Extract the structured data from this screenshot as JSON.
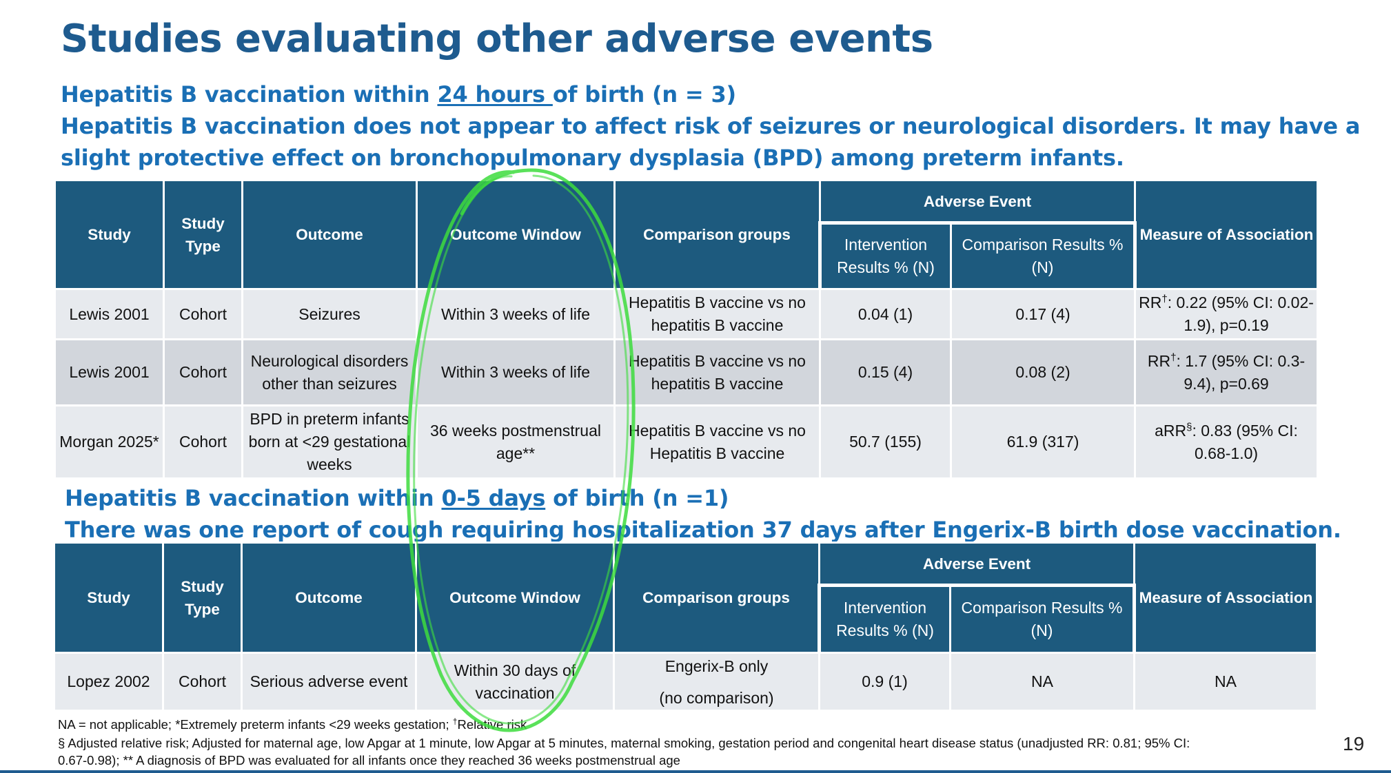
{
  "slide": {
    "title": "Studies evaluating other adverse events",
    "page_number": "19"
  },
  "section1": {
    "heading_prefix": "Hepatitis B vaccination within ",
    "heading_underlined": "24 hours ",
    "heading_suffix": "of birth (n = 3)",
    "summary_line1": "Hepatitis B vaccination does not appear to affect risk of seizures or neurological disorders. It may have a",
    "summary_line2": "slight protective effect on bronchopulmonary dysplasia (BPD) among preterm infants."
  },
  "section2": {
    "heading_prefix": "Hepatitis B vaccination within ",
    "heading_underlined": "0-5 days",
    "heading_suffix": " of birth (n =1)",
    "summary": "There was one report of cough requiring hospitalization 37 days after Engerix-B birth dose vaccination."
  },
  "columns": {
    "study": "Study",
    "study_type": "Study Type",
    "outcome": "Outcome",
    "outcome_window": "Outcome Window",
    "comparison_groups": "Comparison groups",
    "adverse_event": "Adverse Event",
    "intervention_results": "Intervention Results % (N)",
    "comparison_results": "Comparison Results % (N)",
    "measure": "Measure of Association"
  },
  "table1": {
    "rows": [
      {
        "study": "Lewis 2001",
        "type": "Cohort",
        "outcome": "Seizures",
        "window": "Within 3 weeks of life",
        "comparison": "Hepatitis B vaccine vs no hepatitis B vaccine",
        "intervention": "0.04 (1)",
        "comparison_result": "0.17 (4)",
        "measure_prefix": "RR",
        "measure_mark": "†",
        "measure_rest": ": 0.22 (95% CI: 0.02-1.9), p=0.19"
      },
      {
        "study": "Lewis 2001",
        "type": "Cohort",
        "outcome": "Neurological disorders other than seizures",
        "window": "Within 3 weeks of life",
        "comparison": "Hepatitis B vaccine vs no hepatitis B vaccine",
        "intervention": "0.15 (4)",
        "comparison_result": "0.08 (2)",
        "measure_prefix": "RR",
        "measure_mark": "†",
        "measure_rest": ": 1.7 (95% CI: 0.3-9.4), p=0.69"
      },
      {
        "study": "Morgan 2025*",
        "type": "Cohort",
        "outcome": "BPD in preterm infants born at <29 gestational weeks",
        "window": "36 weeks postmenstrual age**",
        "comparison": "Hepatitis B vaccine vs no Hepatitis B vaccine",
        "intervention": "50.7 (155)",
        "comparison_result": "61.9 (317)",
        "measure_prefix": "aRR",
        "measure_mark": "§",
        "measure_rest": ": 0.83 (95% CI: 0.68-1.0)"
      }
    ]
  },
  "table2": {
    "rows": [
      {
        "study": "Lopez 2002",
        "type": "Cohort",
        "outcome": "Serious adverse event",
        "window": "Within 30 days of vaccination",
        "comparison_line1": "Engerix-B only",
        "comparison_line2": "(no comparison)",
        "intervention": "0.9 (1)",
        "comparison_result": "NA",
        "measure": "NA"
      }
    ]
  },
  "footnotes": {
    "line1_a": "NA = not applicable; *Extremely preterm infants <29 weeks gestation; ",
    "line1_mark": "†",
    "line1_b": "Relative risk",
    "line2": "§ Adjusted relative risk; Adjusted for maternal age, low Apgar at 1 minute, low Apgar at 5 minutes, maternal smoking, gestation period and congenital heart disease status (unadjusted RR: 0.81; 95% CI:",
    "line3": "0.67-0.98); ** A diagnosis of BPD was evaluated for all infants once they reached 36 weeks postmenstrual age"
  },
  "annotation": {
    "color": "#3ddc3d",
    "shape": "hand-drawn ellipse around Outcome Window column"
  }
}
